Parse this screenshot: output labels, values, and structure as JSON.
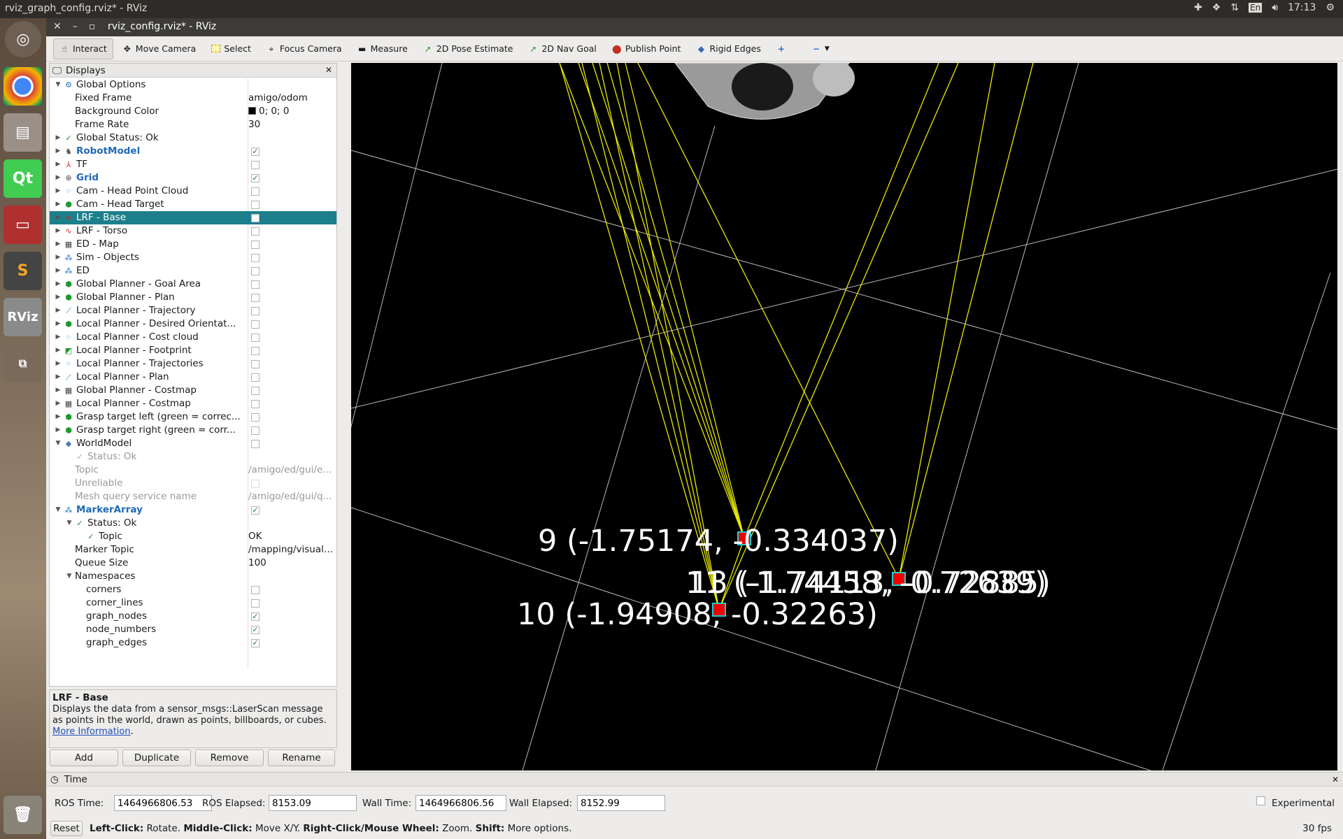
{
  "desktop": {
    "title": "rviz_graph_config.rviz* - RViz",
    "clock": "17:13",
    "keyboard": "En"
  },
  "launcher": [
    "Ubuntu",
    "Chrome",
    "Files",
    "Qt",
    "Terminal",
    "Sublime",
    "RViz",
    "Workspaces",
    "Trash"
  ],
  "window": {
    "title": "rviz_config.rviz* - RViz"
  },
  "toolbar": {
    "interact": "Interact",
    "move_camera": "Move Camera",
    "select": "Select",
    "focus_camera": "Focus Camera",
    "measure": "Measure",
    "pose_estimate": "2D Pose Estimate",
    "nav_goal": "2D Nav Goal",
    "publish_point": "Publish Point",
    "rigid_edges": "Rigid Edges"
  },
  "displays": {
    "title": "Displays",
    "rows": [
      {
        "label": "Global Options",
        "arrow": "down",
        "icon": "settings-icon",
        "ic": "⚙",
        "c": "#2d6fb5",
        "lvl": 0
      },
      {
        "label": "Fixed Frame",
        "val": "amigo/odom",
        "lvl": 1
      },
      {
        "label": "Background Color",
        "val": "0; 0; 0",
        "swatch": true,
        "lvl": 1
      },
      {
        "label": "Frame Rate",
        "val": "30",
        "lvl": 1
      },
      {
        "label": "Global Status: Ok",
        "arrow": "right",
        "icon": "check-icon",
        "ic": "✓",
        "c": "#2a8a2a",
        "lvl": 0
      },
      {
        "label": "RobotModel",
        "arrow": "right",
        "icon": "robot-icon",
        "ic": "♞",
        "c": "#555",
        "lvl": 0,
        "blue": true,
        "cb": true
      },
      {
        "label": "TF",
        "arrow": "right",
        "icon": "tf-icon",
        "ic": "⅄",
        "c": "#c03030",
        "lvl": 0,
        "cb": false
      },
      {
        "label": "Grid",
        "arrow": "right",
        "icon": "grid-icon",
        "ic": "⊕",
        "c": "#555",
        "lvl": 0,
        "blue": true,
        "cb": true
      },
      {
        "label": "Cam - Head Point Cloud",
        "arrow": "right",
        "icon": "pointcloud-icon",
        "ic": "⁘",
        "c": "#2a90d0",
        "lvl": 0,
        "cb": false
      },
      {
        "label": "Cam - Head Target",
        "arrow": "right",
        "icon": "cube-icon",
        "ic": "⬢",
        "c": "#1a9a2a",
        "lvl": 0,
        "cb": false
      },
      {
        "label": "LRF - Base",
        "arrow": "right",
        "icon": "laser-icon",
        "ic": "∿",
        "c": "#d02020",
        "lvl": 0,
        "cb": false,
        "sel": true
      },
      {
        "label": "LRF - Torso",
        "arrow": "right",
        "icon": "laser-icon",
        "ic": "∿",
        "c": "#d02020",
        "lvl": 0,
        "cb": false
      },
      {
        "label": "ED - Map",
        "arrow": "right",
        "icon": "map-icon",
        "ic": "▦",
        "c": "#444",
        "lvl": 0,
        "cb": false
      },
      {
        "label": "Sim - Objects",
        "arrow": "right",
        "icon": "markers-icon",
        "ic": "⁂",
        "c": "#1a6ac0",
        "lvl": 0,
        "cb": false
      },
      {
        "label": "ED",
        "arrow": "right",
        "icon": "markers-icon",
        "ic": "⁂",
        "c": "#1a6ac0",
        "lvl": 0,
        "cb": false
      },
      {
        "label": "Global Planner - Goal Area",
        "arrow": "right",
        "icon": "cube-icon",
        "ic": "⬢",
        "c": "#1a9a2a",
        "lvl": 0,
        "cb": false
      },
      {
        "label": "Global Planner - Plan",
        "arrow": "right",
        "icon": "cube-icon",
        "ic": "⬢",
        "c": "#1a9a2a",
        "lvl": 0,
        "cb": false
      },
      {
        "label": "Local Planner - Trajectory",
        "arrow": "right",
        "icon": "path-icon",
        "ic": "⟋",
        "c": "#1a9a2a",
        "lvl": 0,
        "cb": false
      },
      {
        "label": "Local Planner - Desired Orientat...",
        "arrow": "right",
        "icon": "cube-icon",
        "ic": "⬢",
        "c": "#1a9a2a",
        "lvl": 0,
        "cb": false
      },
      {
        "label": "Local Planner - Cost cloud",
        "arrow": "right",
        "icon": "pointcloud-icon",
        "ic": "⁘",
        "c": "#2a90d0",
        "lvl": 0,
        "cb": false
      },
      {
        "label": "Local Planner - Footprint",
        "arrow": "right",
        "icon": "polygon-icon",
        "ic": "◩",
        "c": "#1a9a2a",
        "lvl": 0,
        "cb": false
      },
      {
        "label": "Local Planner - Trajectories",
        "arrow": "right",
        "icon": "pointcloud-icon",
        "ic": "⁘",
        "c": "#2a90d0",
        "lvl": 0,
        "cb": false
      },
      {
        "label": "Local Planner - Plan",
        "arrow": "right",
        "icon": "path-icon",
        "ic": "⟋",
        "c": "#1a9a2a",
        "lvl": 0,
        "cb": false
      },
      {
        "label": "Global Planner - Costmap",
        "arrow": "right",
        "icon": "map-icon",
        "ic": "▦",
        "c": "#444",
        "lvl": 0,
        "cb": false
      },
      {
        "label": "Local Planner - Costmap",
        "arrow": "right",
        "icon": "map-icon",
        "ic": "▦",
        "c": "#444",
        "lvl": 0,
        "cb": false
      },
      {
        "label": "Grasp target left (green = correc...",
        "arrow": "right",
        "icon": "cube-icon",
        "ic": "⬢",
        "c": "#1a9a2a",
        "lvl": 0,
        "cb": false
      },
      {
        "label": "Grasp target right (green = corr...",
        "arrow": "right",
        "icon": "cube-icon",
        "ic": "⬢",
        "c": "#1a9a2a",
        "lvl": 0,
        "cb": false
      },
      {
        "label": "WorldModel",
        "arrow": "down",
        "icon": "diamond-icon",
        "ic": "◆",
        "c": "#4a7ab0",
        "lvl": 0,
        "cb": false
      },
      {
        "label": "Status: Ok",
        "icon": "check-icon",
        "ic": "✓",
        "c": "#9a9",
        "lvl": 1,
        "dim": true
      },
      {
        "label": "Topic",
        "val": "/amigo/ed/gui/e...",
        "lvl": 1,
        "dim": true
      },
      {
        "label": "Unreliable",
        "lvl": 1,
        "dim": true,
        "cb": false
      },
      {
        "label": "Mesh query service name",
        "val": "/amigo/ed/gui/q...",
        "lvl": 1,
        "dim": true
      },
      {
        "label": "MarkerArray",
        "arrow": "down",
        "icon": "markers-icon",
        "ic": "⁂",
        "c": "#1a6ac0",
        "lvl": 0,
        "blue": true,
        "cb": true
      },
      {
        "label": "Status: Ok",
        "arrow": "down",
        "icon": "check-icon",
        "ic": "✓",
        "c": "#2a8a2a",
        "lvl": 1
      },
      {
        "label": "Topic",
        "val": "OK",
        "icon": "check-icon",
        "ic": "✓",
        "c": "#2a8a2a",
        "lvl": 2
      },
      {
        "label": "Marker Topic",
        "val": "/mapping/visuali...",
        "lvl": 1
      },
      {
        "label": "Queue Size",
        "val": "100",
        "lvl": 1
      },
      {
        "label": "Namespaces",
        "arrow": "down",
        "lvl": 1
      },
      {
        "label": "corners",
        "lvl": 2,
        "cb": false
      },
      {
        "label": "corner_lines",
        "lvl": 2,
        "cb": false
      },
      {
        "label": "graph_nodes",
        "lvl": 2,
        "cb": true
      },
      {
        "label": "node_numbers",
        "lvl": 2,
        "cb": true
      },
      {
        "label": "graph_edges",
        "lvl": 2,
        "cb": true
      }
    ]
  },
  "description": {
    "title": "LRF - Base",
    "text": "Displays the data from a sensor_msgs::LaserScan message as points in the world, drawn as points, billboards, or cubes.",
    "link": "More Information"
  },
  "display_buttons": {
    "add": "Add",
    "duplicate": "Duplicate",
    "remove": "Remove",
    "rename": "Rename"
  },
  "viewport": {
    "labels": [
      {
        "id": "9",
        "text": "9   (-1.75174,   -0.334037)"
      },
      {
        "id": "11",
        "text": "11   (-1.74458,   -0.72639)"
      },
      {
        "id": "13",
        "text": "13   (-1.74113,   -0.72885)"
      },
      {
        "id": "10",
        "text": "10   (-1.94908,   -0.32263)"
      }
    ]
  },
  "time": {
    "title": "Time",
    "ros_time_label": "ROS Time:",
    "ros_time": "1464966806.53",
    "ros_elapsed_label": "ROS Elapsed:",
    "ros_elapsed": "8153.09",
    "wall_time_label": "Wall Time:",
    "wall_time": "1464966806.56",
    "wall_elapsed_label": "Wall Elapsed:",
    "wall_elapsed": "8152.99",
    "experimental": "Experimental"
  },
  "status": {
    "reset": "Reset",
    "left_click": "Left-Click:",
    "left_desc": "Rotate.",
    "middle_click": "Middle-Click:",
    "middle_desc": "Move X/Y.",
    "right_click": "Right-Click/Mouse Wheel:",
    "right_desc": "Zoom.",
    "shift": "Shift:",
    "shift_desc": "More options.",
    "fps": "30 fps"
  }
}
